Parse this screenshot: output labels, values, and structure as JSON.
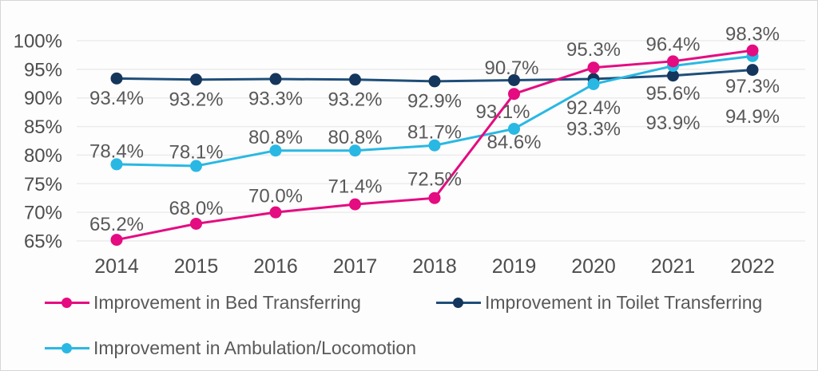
{
  "chart_data": {
    "type": "line",
    "title": "",
    "x": [
      "2014",
      "2015",
      "2016",
      "2017",
      "2018",
      "2019",
      "2020",
      "2021",
      "2022"
    ],
    "y_tick_values": [
      100,
      95,
      90,
      85,
      80,
      75,
      70,
      65
    ],
    "y_tick_labels": [
      "100%",
      "95%",
      "90%",
      "85%",
      "80%",
      "75%",
      "70%",
      "65%"
    ],
    "ylim": [
      65,
      100
    ],
    "grid": true,
    "legend_position": "bottom",
    "series": [
      {
        "name": "Improvement in Bed Transferring",
        "slug": "bed-transferring",
        "color": "#e50b81",
        "dot_color": "#e50b81",
        "values": [
          65.2,
          68.0,
          70.0,
          71.4,
          72.5,
          90.7,
          95.3,
          96.4,
          98.3
        ],
        "labels": [
          "65.2%",
          "68.0%",
          "70.0%",
          "71.4%",
          "72.5%",
          "90.7%",
          "95.3%",
          "96.4%",
          "98.3%"
        ]
      },
      {
        "name": "Improvement in Toilet Transferring",
        "slug": "toilet-transferring",
        "color": "#1f4e79",
        "dot_color": "#15365c",
        "values": [
          93.4,
          93.2,
          93.3,
          93.2,
          92.9,
          93.1,
          93.3,
          93.9,
          94.9
        ],
        "labels": [
          "93.4%",
          "93.2%",
          "93.3%",
          "93.2%",
          "92.9%",
          "93.1%",
          "93.3%",
          "93.9%",
          "94.9%"
        ]
      },
      {
        "name": "Improvement in Ambulation/Locomotion",
        "slug": "ambulation-locomotion",
        "color": "#29b8e3",
        "dot_color": "#29b8e3",
        "values": [
          78.4,
          78.1,
          80.8,
          80.8,
          81.7,
          84.6,
          92.4,
          95.6,
          97.3
        ],
        "labels": [
          "78.4%",
          "78.1%",
          "80.8%",
          "80.8%",
          "81.7%",
          "84.6%",
          "92.4%",
          "95.6%",
          "97.3%"
        ]
      }
    ],
    "label_offsets": [
      [
        [
          0,
          -19
        ],
        [
          0,
          -19
        ],
        [
          0,
          -20
        ],
        [
          0,
          -22
        ],
        [
          0,
          -23
        ],
        [
          -3,
          -32
        ],
        [
          0,
          -22
        ],
        [
          0,
          -21
        ],
        [
          0,
          -20
        ]
      ],
      [
        [
          0,
          25
        ],
        [
          0,
          25
        ],
        [
          0,
          25
        ],
        [
          0,
          25
        ],
        [
          0,
          25
        ],
        [
          -14,
          40
        ],
        [
          0,
          63
        ],
        [
          0,
          60
        ],
        [
          0,
          59
        ]
      ],
      [
        [
          0,
          -16
        ],
        [
          0,
          -17
        ],
        [
          0,
          -16
        ],
        [
          0,
          -16
        ],
        [
          0,
          -16
        ],
        [
          0,
          17
        ],
        [
          0,
          30
        ],
        [
          0,
          35
        ],
        [
          0,
          38
        ]
      ]
    ],
    "colors": {
      "grid": "#ececec",
      "tick_text": "#4d4d4d",
      "data_label_text": "#595959",
      "background": "#fdfdfd",
      "border": "#d6d6d6"
    }
  }
}
